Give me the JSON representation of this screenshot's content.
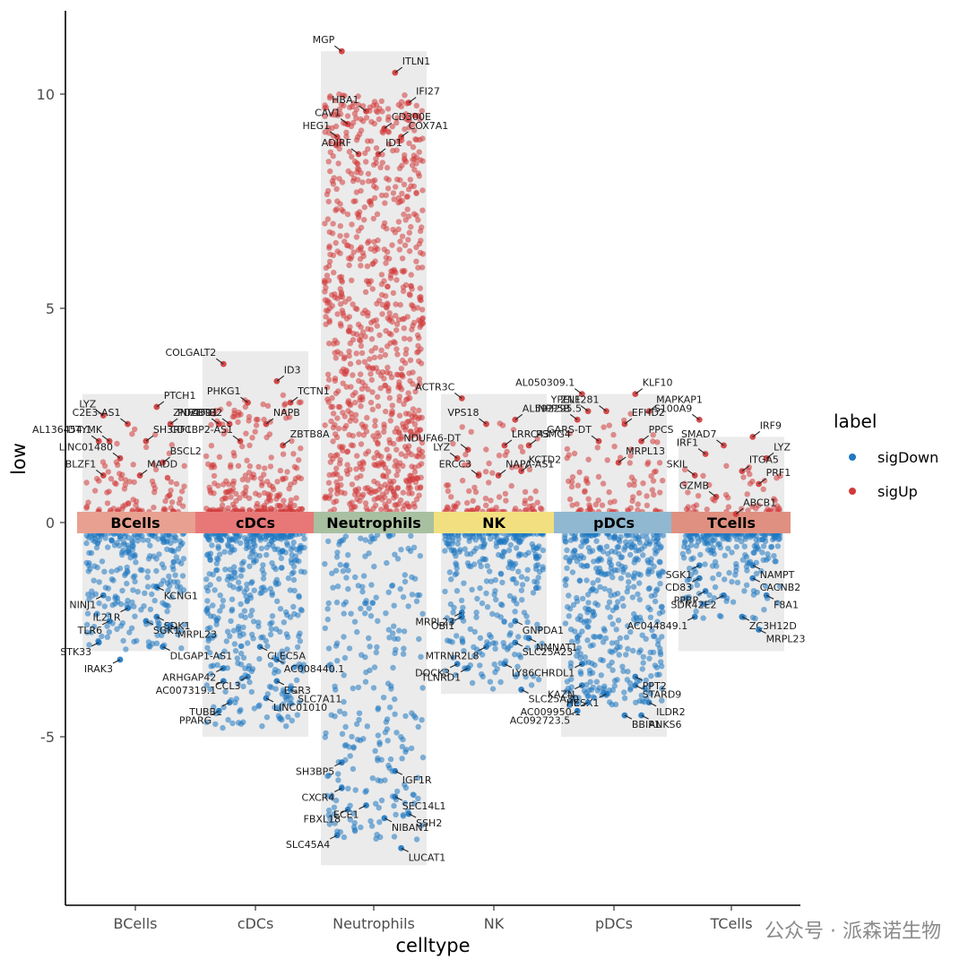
{
  "colors": {
    "sigDown": "#1f78c1",
    "sigUp": "#d23a3a",
    "panel": "#ebebeb"
  },
  "watermark": "公众号 · 派森诺生物",
  "chart_data": {
    "type": "scatter",
    "xlabel": "celltype",
    "ylabel": "low",
    "ylim": [
      -9,
      12
    ],
    "yticks": [
      -5,
      0,
      5,
      10
    ],
    "ytick_labels": [
      "-5",
      "0",
      "5",
      "10"
    ],
    "categories": [
      "BCells",
      "cDCs",
      "Neutrophils",
      "NK",
      "pDCs",
      "TCells"
    ],
    "category_colors": [
      "#e8a090",
      "#e87878",
      "#a8c0a0",
      "#f2e080",
      "#90b8d0",
      "#e09080"
    ],
    "legend": {
      "title": "label",
      "entries": [
        "sigDown",
        "sigUp"
      ]
    },
    "ranges": {
      "BCells": {
        "min": -3.0,
        "max": 3.0
      },
      "cDCs": {
        "min": -5.0,
        "max": 4.0
      },
      "Neutrophils": {
        "min": -8.0,
        "max": 11.0
      },
      "NK": {
        "min": -4.0,
        "max": 3.0
      },
      "pDCs": {
        "min": -5.0,
        "max": 3.0
      },
      "TCells": {
        "min": -3.0,
        "max": 2.0
      }
    },
    "labeled_genes": [
      {
        "cluster": "BCells",
        "gene": "LYZ",
        "value": 2.5
      },
      {
        "cluster": "BCells",
        "gene": "PTCH1",
        "value": 2.7
      },
      {
        "cluster": "BCells",
        "gene": "C2E3-AS1",
        "value": 2.3
      },
      {
        "cluster": "BCells",
        "gene": "PDCD11",
        "value": 2.3
      },
      {
        "cluster": "BCells",
        "gene": "DTYMK",
        "value": 1.9
      },
      {
        "cluster": "BCells",
        "gene": "SH3RF1",
        "value": 1.9
      },
      {
        "cluster": "BCells",
        "gene": "AL136454.1",
        "value": 1.9
      },
      {
        "cluster": "BCells",
        "gene": "BSCL2",
        "value": 1.4
      },
      {
        "cluster": "BCells",
        "gene": "LINC01480",
        "value": 1.5
      },
      {
        "cluster": "BCells",
        "gene": "MADD",
        "value": 1.1
      },
      {
        "cluster": "BCells",
        "gene": "BLZF1",
        "value": 1.1
      },
      {
        "cluster": "BCells",
        "gene": "KCNG1",
        "value": -1.5
      },
      {
        "cluster": "BCells",
        "gene": "NINJ1",
        "value": -1.7
      },
      {
        "cluster": "BCells",
        "gene": "SDK1",
        "value": -2.2
      },
      {
        "cluster": "BCells",
        "gene": "IL21R",
        "value": -2.0
      },
      {
        "cluster": "BCells",
        "gene": "MRPL23",
        "value": -2.4
      },
      {
        "cluster": "BCells",
        "gene": "TLR6",
        "value": -2.3
      },
      {
        "cluster": "BCells",
        "gene": "SGK1",
        "value": -2.3
      },
      {
        "cluster": "BCells",
        "gene": "STK33",
        "value": -2.8
      },
      {
        "cluster": "BCells",
        "gene": "DLGAP1-AS1",
        "value": -2.9
      },
      {
        "cluster": "BCells",
        "gene": "IRAK3",
        "value": -3.2
      },
      {
        "cluster": "cDCs",
        "gene": "COLGALT2",
        "value": 3.7
      },
      {
        "cluster": "cDCs",
        "gene": "ID3",
        "value": 3.3
      },
      {
        "cluster": "cDCs",
        "gene": "PHKG1",
        "value": 2.8
      },
      {
        "cluster": "cDCs",
        "gene": "TCTN1",
        "value": 2.8
      },
      {
        "cluster": "cDCs",
        "gene": "ZBTB2",
        "value": 2.3
      },
      {
        "cluster": "cDCs",
        "gene": "NAPB",
        "value": 2.3
      },
      {
        "cluster": "cDCs",
        "gene": "ZNF439",
        "value": 2.3
      },
      {
        "cluster": "cDCs",
        "gene": "ZBTB8A",
        "value": 1.8
      },
      {
        "cluster": "cDCs",
        "gene": "CDCBP2-AS1",
        "value": 1.9
      },
      {
        "cluster": "cDCs",
        "gene": "CLEC5A",
        "value": -2.9
      },
      {
        "cluster": "cDCs",
        "gene": "ARHGAP42",
        "value": -3.4
      },
      {
        "cluster": "cDCs",
        "gene": "AC008440.1",
        "value": -3.2
      },
      {
        "cluster": "cDCs",
        "gene": "AC007319.1",
        "value": -3.7
      },
      {
        "cluster": "cDCs",
        "gene": "EGR3",
        "value": -3.7
      },
      {
        "cluster": "cDCs",
        "gene": "CCL3",
        "value": -3.6
      },
      {
        "cluster": "cDCs",
        "gene": "SLC7A11",
        "value": -3.9
      },
      {
        "cluster": "cDCs",
        "gene": "TUBB1",
        "value": -4.2
      },
      {
        "cluster": "cDCs",
        "gene": "LINC01010",
        "value": -4.1
      },
      {
        "cluster": "cDCs",
        "gene": "PPARG",
        "value": -4.4
      },
      {
        "cluster": "Neutrophils",
        "gene": "MGP",
        "value": 11.0
      },
      {
        "cluster": "Neutrophils",
        "gene": "ITLN1",
        "value": 10.5
      },
      {
        "cluster": "Neutrophils",
        "gene": "HBA1",
        "value": 9.6
      },
      {
        "cluster": "Neutrophils",
        "gene": "IFI27",
        "value": 9.8
      },
      {
        "cluster": "Neutrophils",
        "gene": "CAV1",
        "value": 9.3
      },
      {
        "cluster": "Neutrophils",
        "gene": "CD300E",
        "value": 9.2
      },
      {
        "cluster": "Neutrophils",
        "gene": "HEG1",
        "value": 9.0
      },
      {
        "cluster": "Neutrophils",
        "gene": "COX7A1",
        "value": 9.0
      },
      {
        "cluster": "Neutrophils",
        "gene": "ADIRF",
        "value": 8.6
      },
      {
        "cluster": "Neutrophils",
        "gene": "ID1",
        "value": 8.6
      },
      {
        "cluster": "Neutrophils",
        "gene": "SH3BP5",
        "value": -5.6
      },
      {
        "cluster": "Neutrophils",
        "gene": "IGF1R",
        "value": -5.8
      },
      {
        "cluster": "Neutrophils",
        "gene": "CXCR4",
        "value": -6.2
      },
      {
        "cluster": "Neutrophils",
        "gene": "SEC14L1",
        "value": -6.4
      },
      {
        "cluster": "Neutrophils",
        "gene": "ECE1",
        "value": -6.6
      },
      {
        "cluster": "Neutrophils",
        "gene": "SSH2",
        "value": -6.8
      },
      {
        "cluster": "Neutrophils",
        "gene": "FBXL18",
        "value": -6.7
      },
      {
        "cluster": "Neutrophils",
        "gene": "NIBAN1",
        "value": -6.9
      },
      {
        "cluster": "Neutrophils",
        "gene": "SLC45A4",
        "value": -7.3
      },
      {
        "cluster": "Neutrophils",
        "gene": "LUCAT1",
        "value": -7.6
      },
      {
        "cluster": "NK",
        "gene": "ACTR3C",
        "value": 2.9
      },
      {
        "cluster": "NK",
        "gene": "AL592295.5",
        "value": 2.4
      },
      {
        "cluster": "NK",
        "gene": "VPS18",
        "value": 2.3
      },
      {
        "cluster": "NK",
        "gene": "PSMG4",
        "value": 1.8
      },
      {
        "cluster": "NK",
        "gene": "NDUFA6-DT",
        "value": 1.7
      },
      {
        "cluster": "NK",
        "gene": "LRRC43",
        "value": 1.8
      },
      {
        "cluster": "NK",
        "gene": "LYZ",
        "value": 1.5
      },
      {
        "cluster": "NK",
        "gene": "KCTD2",
        "value": 1.2
      },
      {
        "cluster": "NK",
        "gene": "ERCC3",
        "value": 1.1
      },
      {
        "cluster": "NK",
        "gene": "NAPA-AS1",
        "value": 1.1
      },
      {
        "cluster": "NK",
        "gene": "OBI1",
        "value": -2.2
      },
      {
        "cluster": "NK",
        "gene": "GNPDA1",
        "value": -2.3
      },
      {
        "cluster": "NK",
        "gene": "MRPL23",
        "value": -2.1
      },
      {
        "cluster": "NK",
        "gene": "SLC25A23",
        "value": -2.8
      },
      {
        "cluster": "NK",
        "gene": "MTRNR2L8",
        "value": -2.9
      },
      {
        "cluster": "NK",
        "gene": "NMNAT1",
        "value": -2.7
      },
      {
        "cluster": "NK",
        "gene": "TLNRD1",
        "value": -3.4
      },
      {
        "cluster": "NK",
        "gene": "LY86",
        "value": -3.3
      },
      {
        "cluster": "NK",
        "gene": "DOCK3",
        "value": -3.3
      },
      {
        "cluster": "NK",
        "gene": "SLC25A30",
        "value": -3.9
      },
      {
        "cluster": "pDCs",
        "gene": "AL050309.1",
        "value": 3.0
      },
      {
        "cluster": "pDCs",
        "gene": "KLF10",
        "value": 3.0
      },
      {
        "cluster": "pDCs",
        "gene": "ZNF281",
        "value": 2.6
      },
      {
        "cluster": "pDCs",
        "gene": "MAPKAP1",
        "value": 2.6
      },
      {
        "cluster": "pDCs",
        "gene": "YPEL1",
        "value": 2.6
      },
      {
        "cluster": "pDCs",
        "gene": "EFHD2",
        "value": 2.3
      },
      {
        "cluster": "pDCs",
        "gene": "INPP5B",
        "value": 2.4
      },
      {
        "cluster": "pDCs",
        "gene": "PPCS",
        "value": 1.9
      },
      {
        "cluster": "pDCs",
        "gene": "GARS-DT",
        "value": 1.9
      },
      {
        "cluster": "pDCs",
        "gene": "MRPL13",
        "value": 1.4
      },
      {
        "cluster": "pDCs",
        "gene": "CHRDL1",
        "value": -3.3
      },
      {
        "cluster": "pDCs",
        "gene": "PPT2",
        "value": -3.6
      },
      {
        "cluster": "pDCs",
        "gene": "KAZN",
        "value": -3.8
      },
      {
        "cluster": "pDCs",
        "gene": "STARD9",
        "value": -3.8
      },
      {
        "cluster": "pDCs",
        "gene": "HESX1",
        "value": -4.0
      },
      {
        "cluster": "pDCs",
        "gene": "ILDR2",
        "value": -4.2
      },
      {
        "cluster": "pDCs",
        "gene": "AC009950.1",
        "value": -4.2
      },
      {
        "cluster": "pDCs",
        "gene": "BBIP1",
        "value": -4.5
      },
      {
        "cluster": "pDCs",
        "gene": "AC092723.5",
        "value": -4.4
      },
      {
        "cluster": "pDCs",
        "gene": "ANKS6",
        "value": -4.5
      },
      {
        "cluster": "TCells",
        "gene": "S100A9",
        "value": 2.4
      },
      {
        "cluster": "TCells",
        "gene": "IRF9",
        "value": 2.0
      },
      {
        "cluster": "TCells",
        "gene": "SMAD7",
        "value": 1.8
      },
      {
        "cluster": "TCells",
        "gene": "LYZ",
        "value": 1.5
      },
      {
        "cluster": "TCells",
        "gene": "IRF1",
        "value": 1.6
      },
      {
        "cluster": "TCells",
        "gene": "ITGA5",
        "value": 1.2
      },
      {
        "cluster": "TCells",
        "gene": "SKIL",
        "value": 1.1
      },
      {
        "cluster": "TCells",
        "gene": "PRF1",
        "value": 0.9
      },
      {
        "cluster": "TCells",
        "gene": "GZMB",
        "value": 0.6
      },
      {
        "cluster": "TCells",
        "gene": "ABCB1",
        "value": 0.2
      },
      {
        "cluster": "TCells",
        "gene": "SGK1",
        "value": -1.0
      },
      {
        "cluster": "TCells",
        "gene": "NAMPT",
        "value": -1.0
      },
      {
        "cluster": "TCells",
        "gene": "CD83",
        "value": -1.3
      },
      {
        "cluster": "TCells",
        "gene": "CACNB2",
        "value": -1.3
      },
      {
        "cluster": "TCells",
        "gene": "SDR42E2",
        "value": -1.7
      },
      {
        "cluster": "TCells",
        "gene": "F8A1",
        "value": -1.7
      },
      {
        "cluster": "TCells",
        "gene": "PPBP",
        "value": -1.6
      },
      {
        "cluster": "TCells",
        "gene": "ZC3H12D",
        "value": -2.2
      },
      {
        "cluster": "TCells",
        "gene": "AC044849.1",
        "value": -2.2
      },
      {
        "cluster": "TCells",
        "gene": "MRPL23",
        "value": -2.5
      }
    ]
  }
}
